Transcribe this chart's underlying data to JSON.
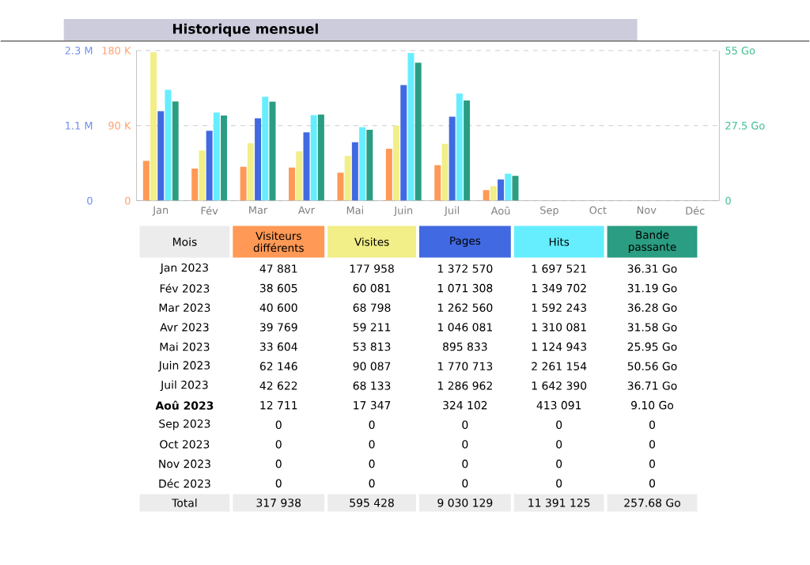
{
  "chart_data": {
    "type": "bar",
    "title": "Historique mensuel",
    "categories": [
      "Jan",
      "Fév",
      "Mar",
      "Avr",
      "Mai",
      "Juin",
      "Juil",
      "Aoû",
      "Sep",
      "Oct",
      "Nov",
      "Déc"
    ],
    "series": [
      {
        "name": "Visiteurs différents",
        "color": "#ff9955",
        "axis": "y2",
        "values": [
          47881,
          38605,
          40600,
          39769,
          33604,
          62146,
          42622,
          12711,
          0,
          0,
          0,
          0
        ]
      },
      {
        "name": "Visites",
        "color": "#f2ee88",
        "axis": "y2",
        "values": [
          177958,
          60081,
          68798,
          59211,
          53813,
          90087,
          68133,
          17347,
          0,
          0,
          0,
          0
        ]
      },
      {
        "name": "Pages",
        "color": "#4169e1",
        "axis": "y",
        "values": [
          1372570,
          1071308,
          1262560,
          1046081,
          895833,
          1770713,
          1286962,
          324102,
          0,
          0,
          0,
          0
        ]
      },
      {
        "name": "Hits",
        "color": "#66eeff",
        "axis": "y",
        "values": [
          1697521,
          1349702,
          1592243,
          1310081,
          1124943,
          2261154,
          1642390,
          413091,
          0,
          0,
          0,
          0
        ]
      },
      {
        "name": "Bande passante",
        "color": "#2a9d82",
        "axis": "y3",
        "values": [
          36.31,
          31.19,
          36.28,
          31.58,
          25.95,
          50.56,
          36.71,
          9.1,
          0,
          0,
          0,
          0
        ]
      }
    ],
    "ylim": [
      0,
      2300000
    ],
    "yticks": [
      0,
      {
        "value": 1150000,
        "label": "1.1 M"
      },
      {
        "value": 2300000,
        "label": "2.3 M"
      }
    ],
    "y2lim": [
      0,
      180000
    ],
    "y2ticks": [
      0,
      {
        "value": 90000,
        "label": "90 K"
      },
      {
        "value": 180000,
        "label": "180 K"
      }
    ],
    "y3lim": [
      0,
      55
    ],
    "y3ticks": [
      0,
      {
        "value": 27.5,
        "label": "27.5 Go"
      },
      {
        "value": 55,
        "label": "55 Go"
      }
    ],
    "grid": "y",
    "annotations": [
      "Mois",
      "Jan 2023",
      "Fév 2023",
      "Mar 2023",
      "Avr 2023",
      "Mai 2023",
      "Juin 2023",
      "Juil 2023",
      "**Aoû 2023**",
      "Sep 2023",
      "Oct 2023",
      "Nov 2023",
      "Déc 2023",
      "Total",
      "317 938",
      "595 428",
      "9 030 129",
      "11 391 125",
      "257.68 Go",
      "47 881",
      "177 958",
      "1 372 570",
      "1 697 521",
      "36.31 Go",
      "38 605",
      "60 081",
      "1 071 308",
      "1 349 702",
      "31.19 Go",
      "40 600",
      "68 798",
      "1 262 560",
      "1 592 243",
      "36.28 Go",
      "39 769",
      "59 211",
      "1 046 081",
      "1 310 081",
      "31.58 Go",
      "33 604",
      "53 813",
      "895 833",
      "1 124 943",
      "25.95 Go",
      "62 146",
      "90 087",
      "1 770 713",
      "2 261 154",
      "50.56 Go",
      "42 622",
      "68 133",
      "1 286 962",
      "1 642 390",
      "36.71 Go",
      "12 711",
      "17 347",
      "324 102",
      "413 091",
      "9.10 Go",
      "0",
      "0",
      "0",
      "0",
      "0",
      "0",
      "0",
      "0",
      "0",
      "0",
      "0",
      "0",
      "0",
      "0",
      "0",
      "0",
      "0",
      "0",
      "0",
      "0"
    ]
  }
}
